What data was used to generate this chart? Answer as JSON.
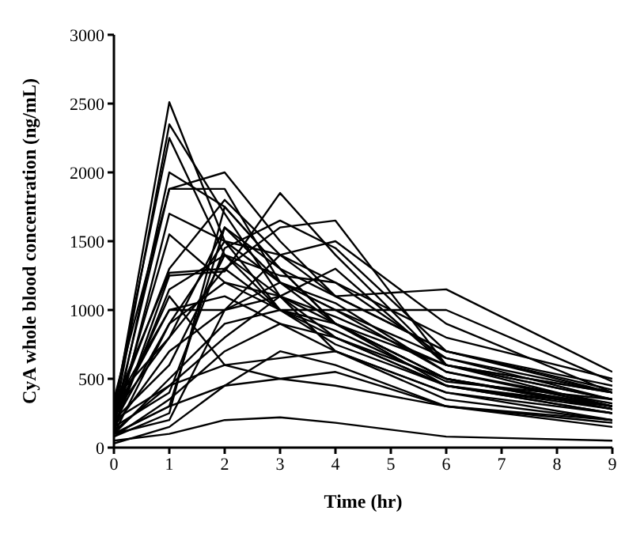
{
  "chart_data": {
    "type": "line",
    "xlabel": "Time (hr)",
    "ylabel": "CyA whole blood concentration (ng/mL)",
    "x": [
      0,
      1,
      2,
      3,
      4,
      6,
      9
    ],
    "xlim": [
      0,
      9
    ],
    "xticks": [
      0,
      1,
      2,
      3,
      4,
      5,
      6,
      7,
      8,
      9
    ],
    "ylim": [
      0,
      3000
    ],
    "yticks": [
      0,
      500,
      1000,
      1500,
      2000,
      2500,
      3000
    ],
    "marker": "none",
    "line_style": "solid",
    "series": [
      {
        "color": "#000000",
        "values": [
          250,
          2510,
          1500,
          1200,
          900,
          500,
          300
        ]
      },
      {
        "color": "#000000",
        "values": [
          200,
          2350,
          1700,
          1100,
          800,
          450,
          280
        ]
      },
      {
        "color": "#000000",
        "values": [
          300,
          2250,
          1400,
          1000,
          850,
          480,
          350
        ]
      },
      {
        "color": "#000000",
        "values": [
          150,
          2000,
          1750,
          1300,
          900,
          600,
          400
        ]
      },
      {
        "color": "#000000",
        "values": [
          200,
          1880,
          2000,
          1500,
          1100,
          700,
          450
        ]
      },
      {
        "color": "#000000",
        "values": [
          350,
          1880,
          1880,
          1200,
          1000,
          650,
          400
        ]
      },
      {
        "color": "#000000",
        "values": [
          100,
          1700,
          1500,
          1400,
          1100,
          1150,
          550
        ]
      },
      {
        "color": "#000000",
        "values": [
          180,
          1550,
          1200,
          1000,
          1000,
          1000,
          480
        ]
      },
      {
        "color": "#000000",
        "values": [
          250,
          1300,
          1800,
          1400,
          1200,
          800,
          500
        ]
      },
      {
        "color": "#000000",
        "values": [
          120,
          1250,
          1280,
          1850,
          1400,
          600,
          350
        ]
      },
      {
        "color": "#000000",
        "values": [
          300,
          1270,
          1300,
          1600,
          1650,
          600,
          400
        ]
      },
      {
        "color": "#000000",
        "values": [
          80,
          250,
          1750,
          1300,
          900,
          500,
          300
        ]
      },
      {
        "color": "#000000",
        "values": [
          100,
          300,
          1600,
          1200,
          1000,
          550,
          320
        ]
      },
      {
        "color": "#000000",
        "values": [
          150,
          400,
          1450,
          1650,
          1450,
          700,
          400
        ]
      },
      {
        "color": "#000000",
        "values": [
          200,
          600,
          1400,
          1100,
          1300,
          600,
          300
        ]
      },
      {
        "color": "#000000",
        "values": [
          250,
          800,
          1300,
          1000,
          800,
          500,
          280
        ]
      },
      {
        "color": "#000000",
        "values": [
          100,
          900,
          1200,
          1100,
          900,
          450,
          250
        ]
      },
      {
        "color": "#000000",
        "values": [
          300,
          1000,
          1100,
          900,
          700,
          400,
          250
        ]
      },
      {
        "color": "#000000",
        "values": [
          150,
          700,
          1000,
          1200,
          1050,
          550,
          300
        ]
      },
      {
        "color": "#000000",
        "values": [
          100,
          500,
          900,
          1000,
          900,
          500,
          280
        ]
      },
      {
        "color": "#000000",
        "values": [
          200,
          450,
          800,
          1100,
          700,
          400,
          200
        ]
      },
      {
        "color": "#000000",
        "values": [
          80,
          350,
          700,
          900,
          800,
          450,
          250
        ]
      },
      {
        "color": "#000000",
        "values": [
          120,
          450,
          600,
          650,
          700,
          350,
          200
        ]
      },
      {
        "color": "#000000",
        "values": [
          100,
          300,
          450,
          500,
          550,
          300,
          180
        ]
      },
      {
        "color": "#000000",
        "values": [
          50,
          100,
          200,
          220,
          180,
          80,
          50
        ]
      },
      {
        "color": "#000000",
        "values": [
          30,
          150,
          450,
          700,
          600,
          300,
          150
        ]
      },
      {
        "color": "#000000",
        "values": [
          250,
          1000,
          1000,
          1400,
          1500,
          900,
          400
        ]
      },
      {
        "color": "#000000",
        "values": [
          150,
          1150,
          1400,
          1250,
          1200,
          650,
          350
        ]
      },
      {
        "color": "#000000",
        "values": [
          200,
          1100,
          600,
          500,
          450,
          300,
          200
        ]
      },
      {
        "color": "#000000",
        "values": [
          350,
          800,
          1600,
          1300,
          1100,
          700,
          420
        ]
      },
      {
        "color": "#000000",
        "values": [
          100,
          200,
          1000,
          1100,
          950,
          600,
          350
        ]
      },
      {
        "color": "#000000",
        "values": [
          180,
          900,
          1500,
          1000,
          750,
          450,
          300
        ]
      }
    ]
  }
}
